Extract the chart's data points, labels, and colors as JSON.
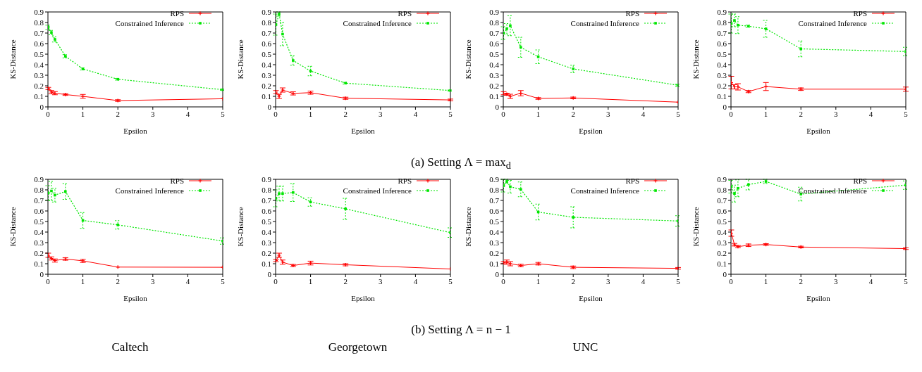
{
  "chart_data": [
    {
      "type": "line",
      "xlabel": "Epsilon",
      "ylabel": "KS-Distance",
      "x": [
        0.01,
        0.1,
        0.2,
        0.5,
        1,
        2,
        5
      ],
      "xlim": [
        0,
        5
      ],
      "xticks": [
        0,
        1,
        2,
        3,
        4,
        5
      ],
      "ylim": [
        0,
        0.9
      ],
      "yticks": [
        0,
        0.1,
        0.2,
        0.3,
        0.4,
        0.5,
        0.6,
        0.7,
        0.8,
        0.9
      ],
      "legend": "top right",
      "annotations": [
        "(a) Setting Λ = max$_{d}$"
      ],
      "series": [
        {
          "name": "RPS",
          "color": "#ff0000",
          "marker": "cross",
          "line_style": "solid",
          "values": [
            0.175,
            0.14,
            0.13,
            0.117,
            0.1,
            0.06,
            0.077
          ],
          "errors": [
            0.01,
            0.015,
            0.015,
            0.008,
            0.018,
            0.008,
            null
          ]
        },
        {
          "name": "Constrained Inference",
          "color": "#00e600",
          "marker": "square",
          "line_style": "dotted",
          "values": [
            0.755,
            0.705,
            0.64,
            0.48,
            0.36,
            0.262,
            0.163
          ],
          "errors": [
            0.02,
            0.02,
            0.025,
            0.015,
            0.01,
            0.008,
            0.005
          ]
        }
      ]
    },
    {
      "type": "line",
      "xlabel": "Epsilon",
      "ylabel": "KS-Distance",
      "x": [
        0.01,
        0.1,
        0.2,
        0.5,
        1,
        2,
        5
      ],
      "xlim": [
        0,
        5
      ],
      "xticks": [
        0,
        1,
        2,
        3,
        4,
        5
      ],
      "ylim": [
        0,
        0.9
      ],
      "yticks": [
        0,
        0.1,
        0.2,
        0.3,
        0.4,
        0.5,
        0.6,
        0.7,
        0.8,
        0.9
      ],
      "legend": "top right",
      "series": [
        {
          "name": "RPS",
          "color": "#ff0000",
          "marker": "cross",
          "line_style": "solid",
          "values": [
            0.14,
            0.1,
            0.16,
            0.128,
            0.135,
            0.082,
            0.066
          ],
          "errors": [
            0.015,
            0.02,
            0.02,
            0.015,
            0.015,
            0.01,
            0.008
          ]
        },
        {
          "name": "Constrained Inference",
          "color": "#00e600",
          "marker": "square",
          "line_style": "dotted",
          "values": [
            0.78,
            0.88,
            0.69,
            0.44,
            0.34,
            0.225,
            0.155
          ],
          "errors": [
            0.1,
            0.02,
            0.11,
            0.045,
            0.045,
            0.008,
            0.005
          ]
        }
      ]
    },
    {
      "type": "line",
      "xlabel": "Epsilon",
      "ylabel": "KS-Distance",
      "x": [
        0.01,
        0.1,
        0.2,
        0.5,
        1,
        2,
        5
      ],
      "xlim": [
        0,
        5
      ],
      "xticks": [
        0,
        1,
        2,
        3,
        4,
        5
      ],
      "ylim": [
        0,
        0.9
      ],
      "yticks": [
        0,
        0.1,
        0.2,
        0.3,
        0.4,
        0.5,
        0.6,
        0.7,
        0.8,
        0.9
      ],
      "legend": "top right",
      "series": [
        {
          "name": "RPS",
          "color": "#ff0000",
          "marker": "cross",
          "line_style": "solid",
          "values": [
            0.13,
            0.12,
            0.1,
            0.13,
            0.08,
            0.085,
            0.045
          ],
          "errors": [
            0.015,
            0.01,
            0.02,
            0.025,
            0.008,
            0.008,
            null
          ]
        },
        {
          "name": "Constrained Inference",
          "color": "#00e600",
          "marker": "square",
          "line_style": "dotted",
          "values": [
            0.7,
            0.74,
            0.77,
            0.565,
            0.475,
            0.36,
            0.205
          ],
          "errors": [
            0.06,
            0.05,
            0.095,
            0.095,
            0.065,
            0.035,
            0.01
          ]
        }
      ]
    },
    {
      "type": "line",
      "xlabel": "Epsilon",
      "ylabel": "KS-Distance",
      "x": [
        0.01,
        0.1,
        0.2,
        0.5,
        1,
        2,
        5
      ],
      "xlim": [
        0,
        5
      ],
      "xticks": [
        0,
        1,
        2,
        3,
        4,
        5
      ],
      "ylim": [
        0,
        0.9
      ],
      "yticks": [
        0,
        0.1,
        0.2,
        0.3,
        0.4,
        0.5,
        0.6,
        0.7,
        0.8,
        0.9
      ],
      "legend": "top right",
      "series": [
        {
          "name": "RPS",
          "color": "#ff0000",
          "marker": "cross",
          "line_style": "solid",
          "values": [
            0.23,
            0.19,
            0.19,
            0.145,
            0.193,
            0.168,
            0.168
          ],
          "errors": [
            0.06,
            0.02,
            0.03,
            0.01,
            0.038,
            0.012,
            0.02
          ]
        },
        {
          "name": "Constrained Inference",
          "color": "#00e600",
          "marker": "square",
          "line_style": "dotted",
          "values": [
            0.79,
            0.82,
            0.775,
            0.765,
            0.74,
            0.55,
            0.525
          ],
          "errors": [
            0.09,
            0.06,
            0.08,
            0.01,
            0.08,
            0.075,
            0.04
          ]
        }
      ]
    },
    {
      "type": "line",
      "xlabel": "Epsilon",
      "ylabel": "KS-Distance",
      "x": [
        0.01,
        0.1,
        0.2,
        0.5,
        1,
        2,
        5
      ],
      "xlim": [
        0,
        5
      ],
      "xticks": [
        0,
        1,
        2,
        3,
        4,
        5
      ],
      "ylim": [
        0,
        0.9
      ],
      "yticks": [
        0,
        0.1,
        0.2,
        0.3,
        0.4,
        0.5,
        0.6,
        0.7,
        0.8,
        0.9
      ],
      "legend": "top right",
      "annotations": [
        "(b) Setting Λ = n − 1",
        "Caltech"
      ],
      "series": [
        {
          "name": "RPS",
          "color": "#ff0000",
          "marker": "cross",
          "line_style": "solid",
          "values": [
            0.18,
            0.15,
            0.13,
            0.145,
            0.127,
            0.068,
            0.066
          ],
          "errors": [
            0.02,
            0.015,
            0.015,
            0.012,
            0.015,
            null,
            null
          ]
        },
        {
          "name": "Constrained Inference",
          "color": "#00e600",
          "marker": "square",
          "line_style": "dotted",
          "values": [
            0.77,
            0.79,
            0.75,
            0.785,
            0.51,
            0.468,
            0.315
          ],
          "errors": [
            0.07,
            0.09,
            0.065,
            0.075,
            0.075,
            0.04,
            0.03
          ]
        }
      ]
    },
    {
      "type": "line",
      "xlabel": "Epsilon",
      "ylabel": "KS-Distance",
      "x": [
        0.01,
        0.1,
        0.2,
        0.5,
        1,
        2,
        5
      ],
      "xlim": [
        0,
        5
      ],
      "xticks": [
        0,
        1,
        2,
        3,
        4,
        5
      ],
      "ylim": [
        0,
        0.9
      ],
      "yticks": [
        0,
        0.1,
        0.2,
        0.3,
        0.4,
        0.5,
        0.6,
        0.7,
        0.8,
        0.9
      ],
      "legend": "top right",
      "annotations": [
        "Georgetown"
      ],
      "series": [
        {
          "name": "RPS",
          "color": "#ff0000",
          "marker": "cross",
          "line_style": "solid",
          "values": [
            0.13,
            0.18,
            0.115,
            0.083,
            0.106,
            0.09,
            0.05
          ],
          "errors": [
            0.01,
            0.02,
            0.02,
            0.01,
            0.018,
            0.01,
            null
          ]
        },
        {
          "name": "Constrained Inference",
          "color": "#00e600",
          "marker": "square",
          "line_style": "dotted",
          "values": [
            0.72,
            0.765,
            0.765,
            0.775,
            0.685,
            0.62,
            0.395
          ],
          "errors": [
            0.08,
            0.07,
            0.07,
            0.085,
            0.04,
            0.1,
            0.045
          ]
        }
      ]
    },
    {
      "type": "line",
      "xlabel": "Epsilon",
      "ylabel": "KS-Distance",
      "x": [
        0.01,
        0.1,
        0.2,
        0.5,
        1,
        2,
        5
      ],
      "xlim": [
        0,
        5
      ],
      "xticks": [
        0,
        1,
        2,
        3,
        4,
        5
      ],
      "ylim": [
        0,
        0.9
      ],
      "yticks": [
        0,
        0.1,
        0.2,
        0.3,
        0.4,
        0.5,
        0.6,
        0.7,
        0.8,
        0.9
      ],
      "legend": "top right",
      "annotations": [
        "UNC"
      ],
      "series": [
        {
          "name": "RPS",
          "color": "#ff0000",
          "marker": "cross",
          "line_style": "solid",
          "values": [
            0.11,
            0.115,
            0.1,
            0.083,
            0.1,
            0.066,
            0.056
          ],
          "errors": [
            0.01,
            0.02,
            0.02,
            0.012,
            0.012,
            0.012,
            0.008
          ]
        },
        {
          "name": "Constrained Inference",
          "color": "#00e600",
          "marker": "square",
          "line_style": "dotted",
          "values": [
            0.84,
            0.88,
            0.83,
            0.805,
            0.59,
            0.54,
            0.505
          ],
          "errors": [
            0.06,
            0.02,
            0.06,
            0.07,
            0.075,
            0.1,
            0.05
          ]
        }
      ]
    },
    {
      "type": "line",
      "xlabel": "Epsilon",
      "ylabel": "KS-Distance",
      "x": [
        0.01,
        0.1,
        0.2,
        0.5,
        1,
        2,
        5
      ],
      "xlim": [
        0,
        5
      ],
      "xticks": [
        0,
        1,
        2,
        3,
        4,
        5
      ],
      "ylim": [
        0,
        0.9
      ],
      "yticks": [
        0,
        0.1,
        0.2,
        0.3,
        0.4,
        0.5,
        0.6,
        0.7,
        0.8,
        0.9
      ],
      "legend": "top right",
      "series": [
        {
          "name": "RPS",
          "color": "#ff0000",
          "marker": "cross",
          "line_style": "solid",
          "values": [
            0.39,
            0.28,
            0.262,
            0.275,
            0.282,
            0.258,
            0.243
          ],
          "errors": [
            0.03,
            0.012,
            0.01,
            0.012,
            0.008,
            0.008,
            0.008
          ]
        },
        {
          "name": "Constrained Inference",
          "color": "#00e600",
          "marker": "square",
          "line_style": "dotted",
          "values": [
            0.83,
            0.765,
            0.815,
            0.85,
            0.88,
            0.76,
            0.845
          ],
          "errors": [
            0.06,
            0.08,
            0.08,
            0.05,
            0.02,
            0.065,
            0.04
          ]
        }
      ]
    }
  ]
}
